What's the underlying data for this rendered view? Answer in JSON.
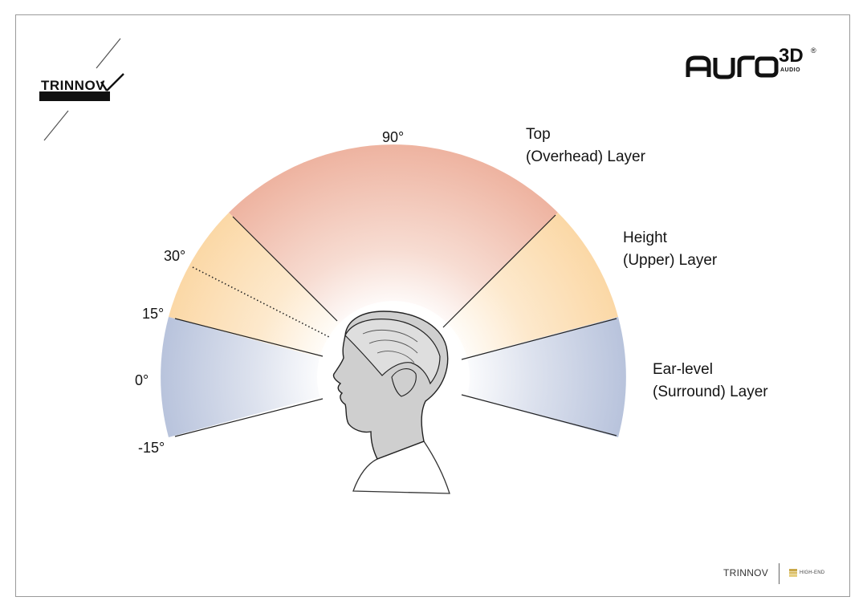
{
  "angle_labels": {
    "deg90": "90°",
    "deg30": "30°",
    "deg15": "15°",
    "deg0": "0°",
    "deg_minus15": "-15°"
  },
  "layers": {
    "top": {
      "line1": "Top",
      "line2": "(Overhead) Layer",
      "color": "#eeb3a0"
    },
    "height": {
      "line1": "Height",
      "line2": "(Upper) Layer",
      "color": "#fbd8a6"
    },
    "ear": {
      "line1": "Ear-level",
      "line2": "(Surround) Layer",
      "color": "#b8c3dc"
    }
  },
  "logos": {
    "trinnov": "TRINNOV",
    "auro_main": "AURO",
    "auro_3d": "3D",
    "auro_sub": "AUDIO",
    "auro_reg": "®"
  },
  "footer": {
    "brand": "TRINNOV",
    "badge": "HIGH-END"
  }
}
